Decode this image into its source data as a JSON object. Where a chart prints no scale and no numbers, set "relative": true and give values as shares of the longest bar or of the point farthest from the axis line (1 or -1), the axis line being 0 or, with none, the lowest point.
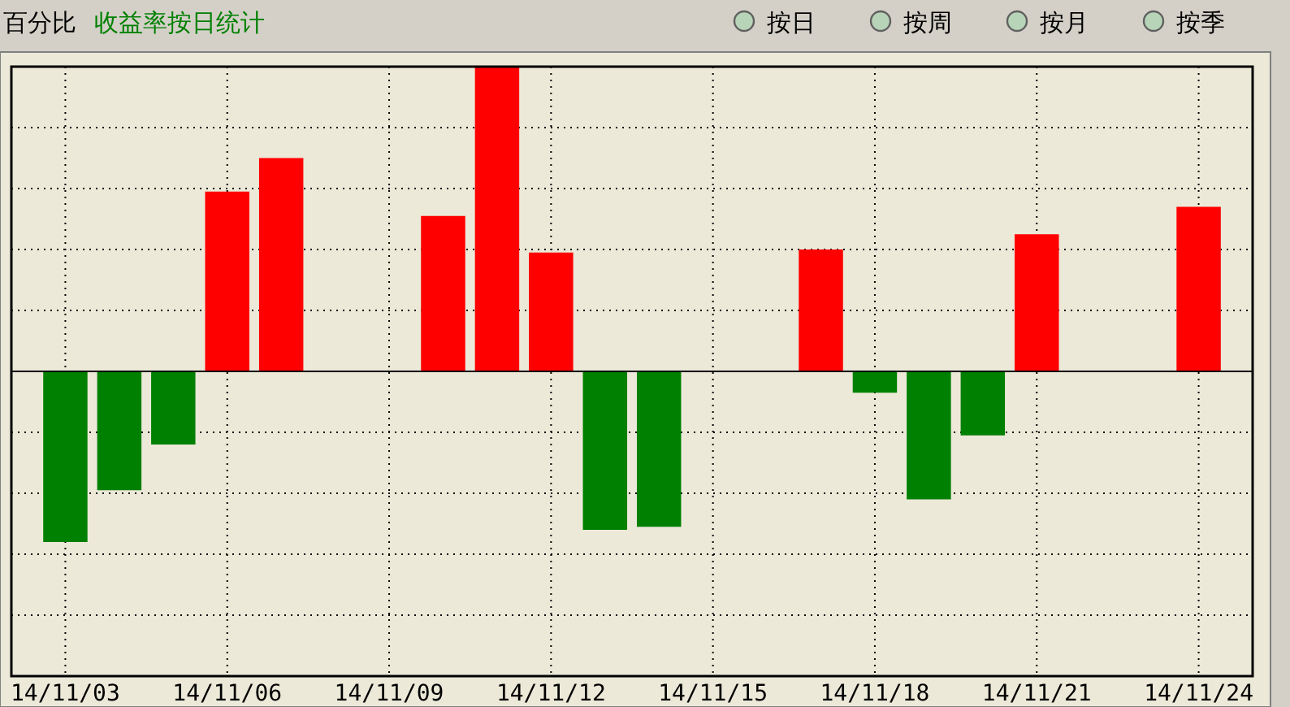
{
  "chart_data": {
    "type": "bar",
    "title": "收益率按日统计",
    "ylabel": "百分比",
    "annotations": [
      "按日",
      "按周",
      "按月",
      "按季"
    ],
    "x": [
      "--11-03",
      "--11-04",
      "--11-05",
      "--11-06",
      "--11-07",
      "--11-10",
      "--11-11",
      "--11-12",
      "--11-13",
      "--11-14",
      "--11-17",
      "--11-18",
      "--11-19",
      "--11-20",
      "--11-21",
      "--11-24"
    ],
    "values": [
      -0.56,
      -0.39,
      -0.24,
      0.59,
      0.7,
      0.51,
      1,
      0.39,
      -0.52,
      -0.51,
      0.4,
      -0.07,
      -0.42,
      -0.21,
      0.45,
      0.54
    ],
    "colors": [
      "#008000",
      "#008000",
      "#008000",
      "#ff0000",
      "#ff0000",
      "#ff0000",
      "#ff0000",
      "#ff0000",
      "#008000",
      "#008000",
      "#ff0000",
      "#008000",
      "#008000",
      "#008000",
      "#ff0000",
      "#ff0000"
    ],
    "relative": true,
    "xlim": [
      "--11-02",
      "--11-25"
    ],
    "xticks": [
      {
        "value": "--11-03",
        "label": "14/11/03"
      },
      {
        "value": "--11-06",
        "label": "14/11/06"
      },
      {
        "value": "--11-09",
        "label": "14/11/09"
      },
      {
        "value": "--11-12",
        "label": "14/11/12"
      },
      {
        "value": "--11-15",
        "label": "14/11/15"
      },
      {
        "value": "--11-18",
        "label": "14/11/18"
      },
      {
        "value": "--11-21",
        "label": "14/11/21"
      },
      {
        "value": "--11-24",
        "label": "14/11/24"
      }
    ],
    "grid": true
  }
}
